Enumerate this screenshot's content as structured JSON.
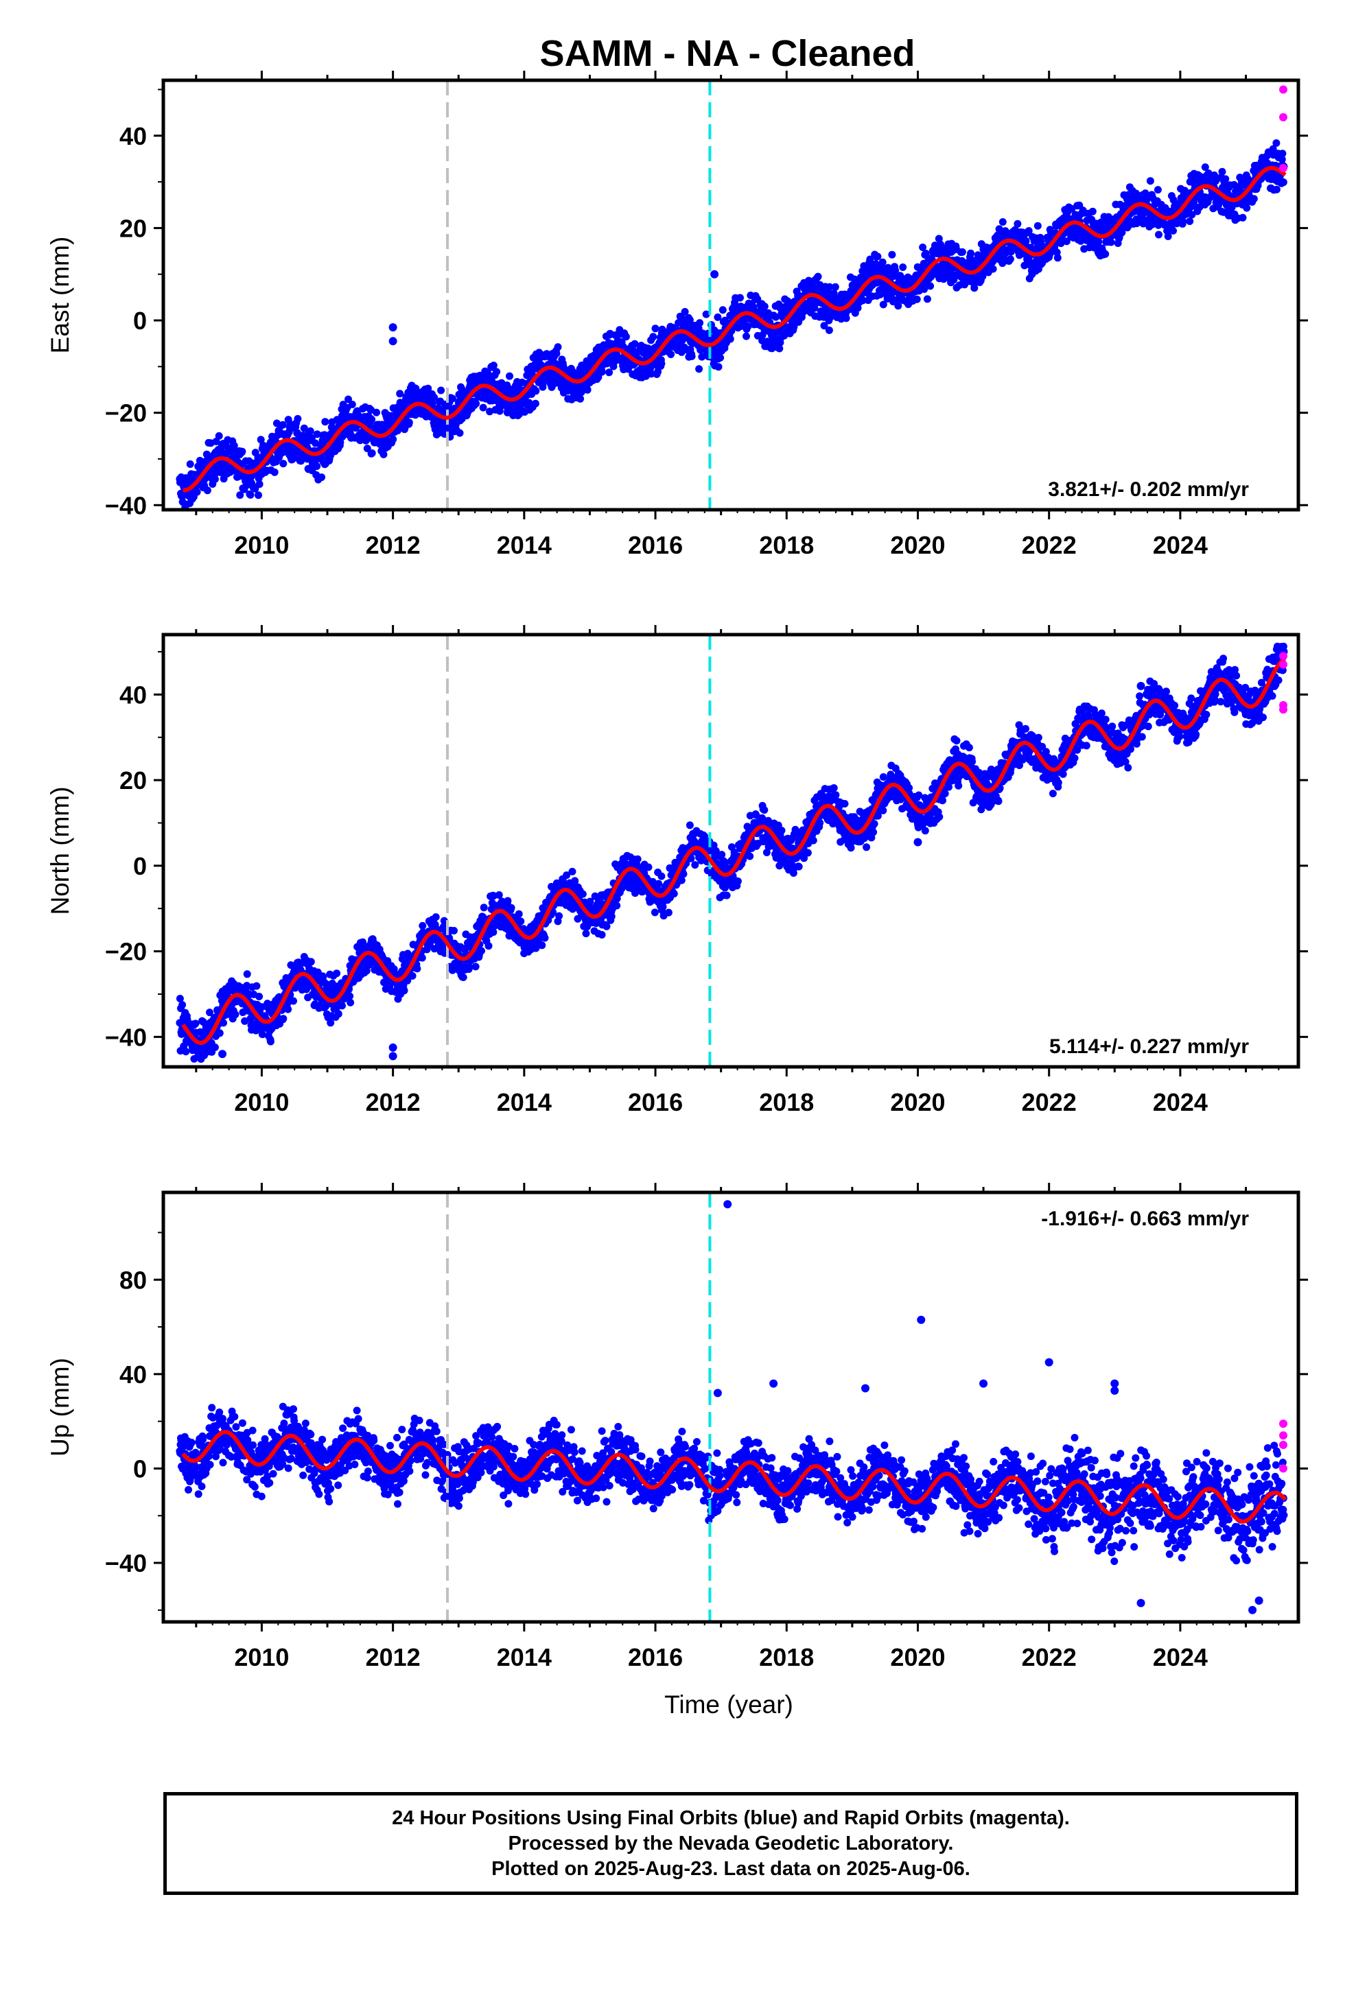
{
  "title": "SAMM  - NA - Cleaned",
  "xlabel": "Time (year)",
  "footer": {
    "line1": "24 Hour Positions Using Final Orbits (blue) and Rapid Orbits (magenta).",
    "line2": "Processed by the Nevada Geodetic Laboratory.",
    "line3": "Plotted on 2025-Aug-23. Last data on 2025-Aug-06."
  },
  "colors": {
    "final_orbits": "#0000ff",
    "rapid_orbits": "#ff00ff",
    "model": "#ff0000",
    "event_gray": "#c0c0c0",
    "event_cyan": "#00e5e5"
  },
  "chart_data": [
    {
      "type": "scatter",
      "ylabel": "East (mm)",
      "rate": "3.821+/- 0.202 mm/yr",
      "xlim": [
        2008.5,
        2025.8
      ],
      "ylim": [
        -41,
        52
      ],
      "xticks": [
        2010,
        2012,
        2014,
        2016,
        2018,
        2020,
        2022,
        2024
      ],
      "yticks": [
        -40,
        -20,
        0,
        20,
        40
      ],
      "events": [
        {
          "x": 2012.83,
          "color": "gray"
        },
        {
          "x": 2016.83,
          "color": "cyan"
        }
      ],
      "model": {
        "start": [
          2008.8,
          -34.5
        ],
        "end": [
          2025.6,
          31.5
        ],
        "amp": 2.4,
        "phase": 0.1
      },
      "scatter": 2.3,
      "outliers": [
        [
          2012.0,
          -1.5
        ],
        [
          2012.0,
          -4.5
        ],
        [
          2016.9,
          10.0
        ]
      ],
      "rapid": [
        [
          2025.57,
          50.0
        ],
        [
          2025.57,
          44.0
        ],
        [
          2025.57,
          33.0
        ]
      ]
    },
    {
      "type": "scatter",
      "ylabel": "North (mm)",
      "rate": "5.114+/- 0.227 mm/yr",
      "xlim": [
        2008.5,
        2025.8
      ],
      "ylim": [
        -47,
        54
      ],
      "xticks": [
        2010,
        2012,
        2014,
        2016,
        2018,
        2020,
        2022,
        2024
      ],
      "yticks": [
        -40,
        -20,
        0,
        20,
        40
      ],
      "events": [
        {
          "x": 2012.83,
          "color": "gray"
        },
        {
          "x": 2016.83,
          "color": "cyan"
        }
      ],
      "model": {
        "start": [
          2008.8,
          -38.5
        ],
        "end": [
          2025.6,
          44.0
        ],
        "amp": 4.3,
        "phase": 0.35
      },
      "scatter": 2.3,
      "outliers": [
        [
          2012.0,
          -42.5
        ],
        [
          2012.0,
          -44.5
        ],
        [
          2009.4,
          -44.0
        ],
        [
          2020.0,
          5.5
        ],
        [
          2023.4,
          42.0
        ]
      ],
      "rapid": [
        [
          2025.57,
          49.0
        ],
        [
          2025.57,
          47.0
        ],
        [
          2025.57,
          37.5
        ],
        [
          2025.57,
          36.5
        ]
      ]
    },
    {
      "type": "scatter",
      "ylabel": "Up (mm)",
      "rate": "-1.916+/- 0.663 mm/yr",
      "xlim": [
        2008.5,
        2025.8
      ],
      "ylim": [
        -65,
        117
      ],
      "xticks": [
        2010,
        2012,
        2014,
        2016,
        2018,
        2020,
        2022,
        2024
      ],
      "yticks": [
        -40,
        0,
        40,
        80
      ],
      "events": [
        {
          "x": 2012.83,
          "color": "gray"
        },
        {
          "x": 2016.83,
          "color": "cyan"
        }
      ],
      "model": {
        "start": [
          2008.8,
          10.0
        ],
        "end": [
          2025.6,
          -17.0
        ],
        "amp": 6.5,
        "phase": 0.2
      },
      "scatter": 6.0,
      "outliers": [
        [
          2017.1,
          112
        ],
        [
          2020.05,
          63
        ],
        [
          2022.0,
          45
        ],
        [
          2023.0,
          36
        ],
        [
          2023.0,
          33
        ],
        [
          2021.0,
          36
        ],
        [
          2019.2,
          34
        ],
        [
          2017.8,
          36
        ],
        [
          2016.95,
          32
        ],
        [
          2025.1,
          -60
        ],
        [
          2025.2,
          -56
        ],
        [
          2023.4,
          -57
        ]
      ],
      "rapid": [
        [
          2025.57,
          19.0
        ],
        [
          2025.57,
          14.0
        ],
        [
          2025.57,
          10.0
        ],
        [
          2025.57,
          0.0
        ]
      ]
    }
  ]
}
